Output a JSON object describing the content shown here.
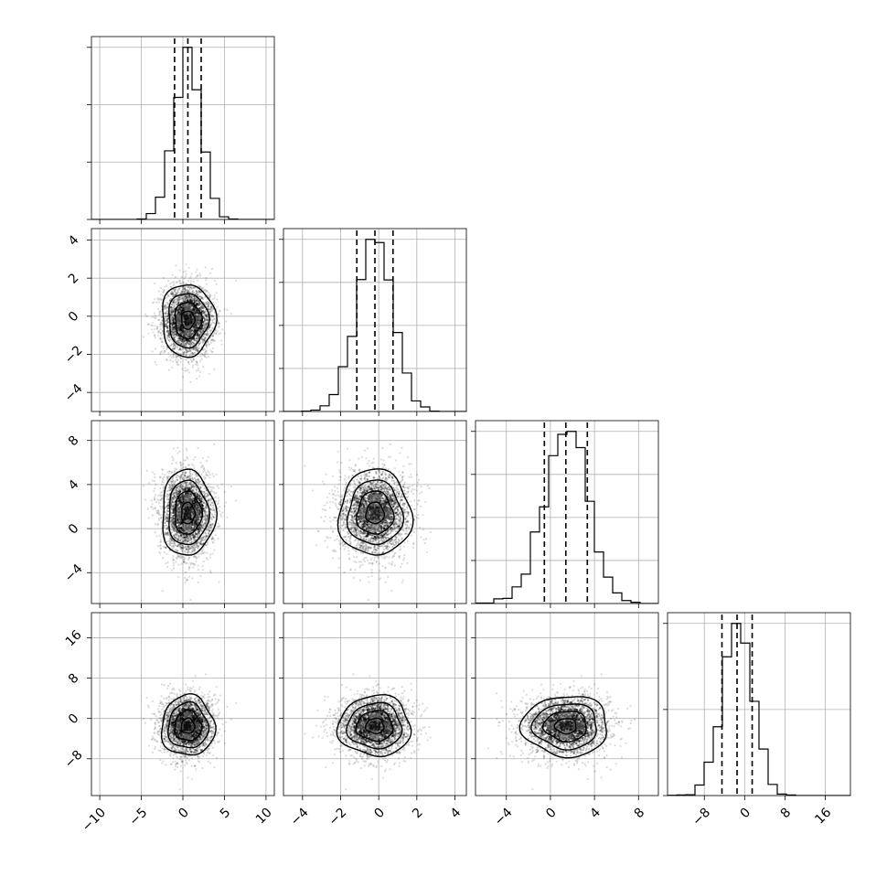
{
  "chart_data": {
    "type": "corner",
    "description_note": "",
    "parameters": [
      {
        "mean": 0.6,
        "std": 1.6,
        "range": [
          -11,
          11
        ],
        "ticks": [
          -10,
          -5,
          0,
          5,
          10
        ],
        "tick_labels": [
          "−10",
          "−5",
          "0",
          "5",
          "10"
        ],
        "quantiles": [
          -1.0,
          0.6,
          2.2
        ]
      },
      {
        "mean": -0.2,
        "std": 0.95,
        "range": [
          -5.0,
          4.6
        ],
        "ticks": [
          -4,
          -2,
          0,
          2,
          4
        ],
        "tick_labels": [
          "−4",
          "−2",
          "0",
          "2",
          "4"
        ],
        "quantiles": [
          -1.15,
          -0.2,
          0.75
        ]
      },
      {
        "mean": 1.4,
        "std": 1.95,
        "range": [
          -6.8,
          9.8
        ],
        "ticks": [
          -4,
          0,
          4,
          8
        ],
        "tick_labels": [
          "−4",
          "0",
          "4",
          "8"
        ],
        "quantiles": [
          -0.55,
          1.4,
          3.35
        ]
      },
      {
        "mean": -1.5,
        "std": 3.0,
        "range": [
          -15.3,
          21.0
        ],
        "ticks": [
          -8,
          0,
          8,
          16
        ],
        "tick_labels": [
          "−8",
          "0",
          "8",
          "16"
        ],
        "quantiles": [
          -4.5,
          -1.5,
          1.5
        ]
      }
    ],
    "histogram_peaks": [
      {
        "y_ticks": 3
      },
      {
        "y_ticks": 4
      },
      {
        "y_ticks": 4
      },
      {
        "y_ticks": 2
      }
    ],
    "contour_levels_sigma": [
      0.5,
      1.0,
      1.5,
      2.0
    ],
    "grid": true,
    "n_samples": 2500,
    "colors": {
      "points": "#000000",
      "lines": "#000000",
      "grid": "#b0b0b0"
    }
  }
}
